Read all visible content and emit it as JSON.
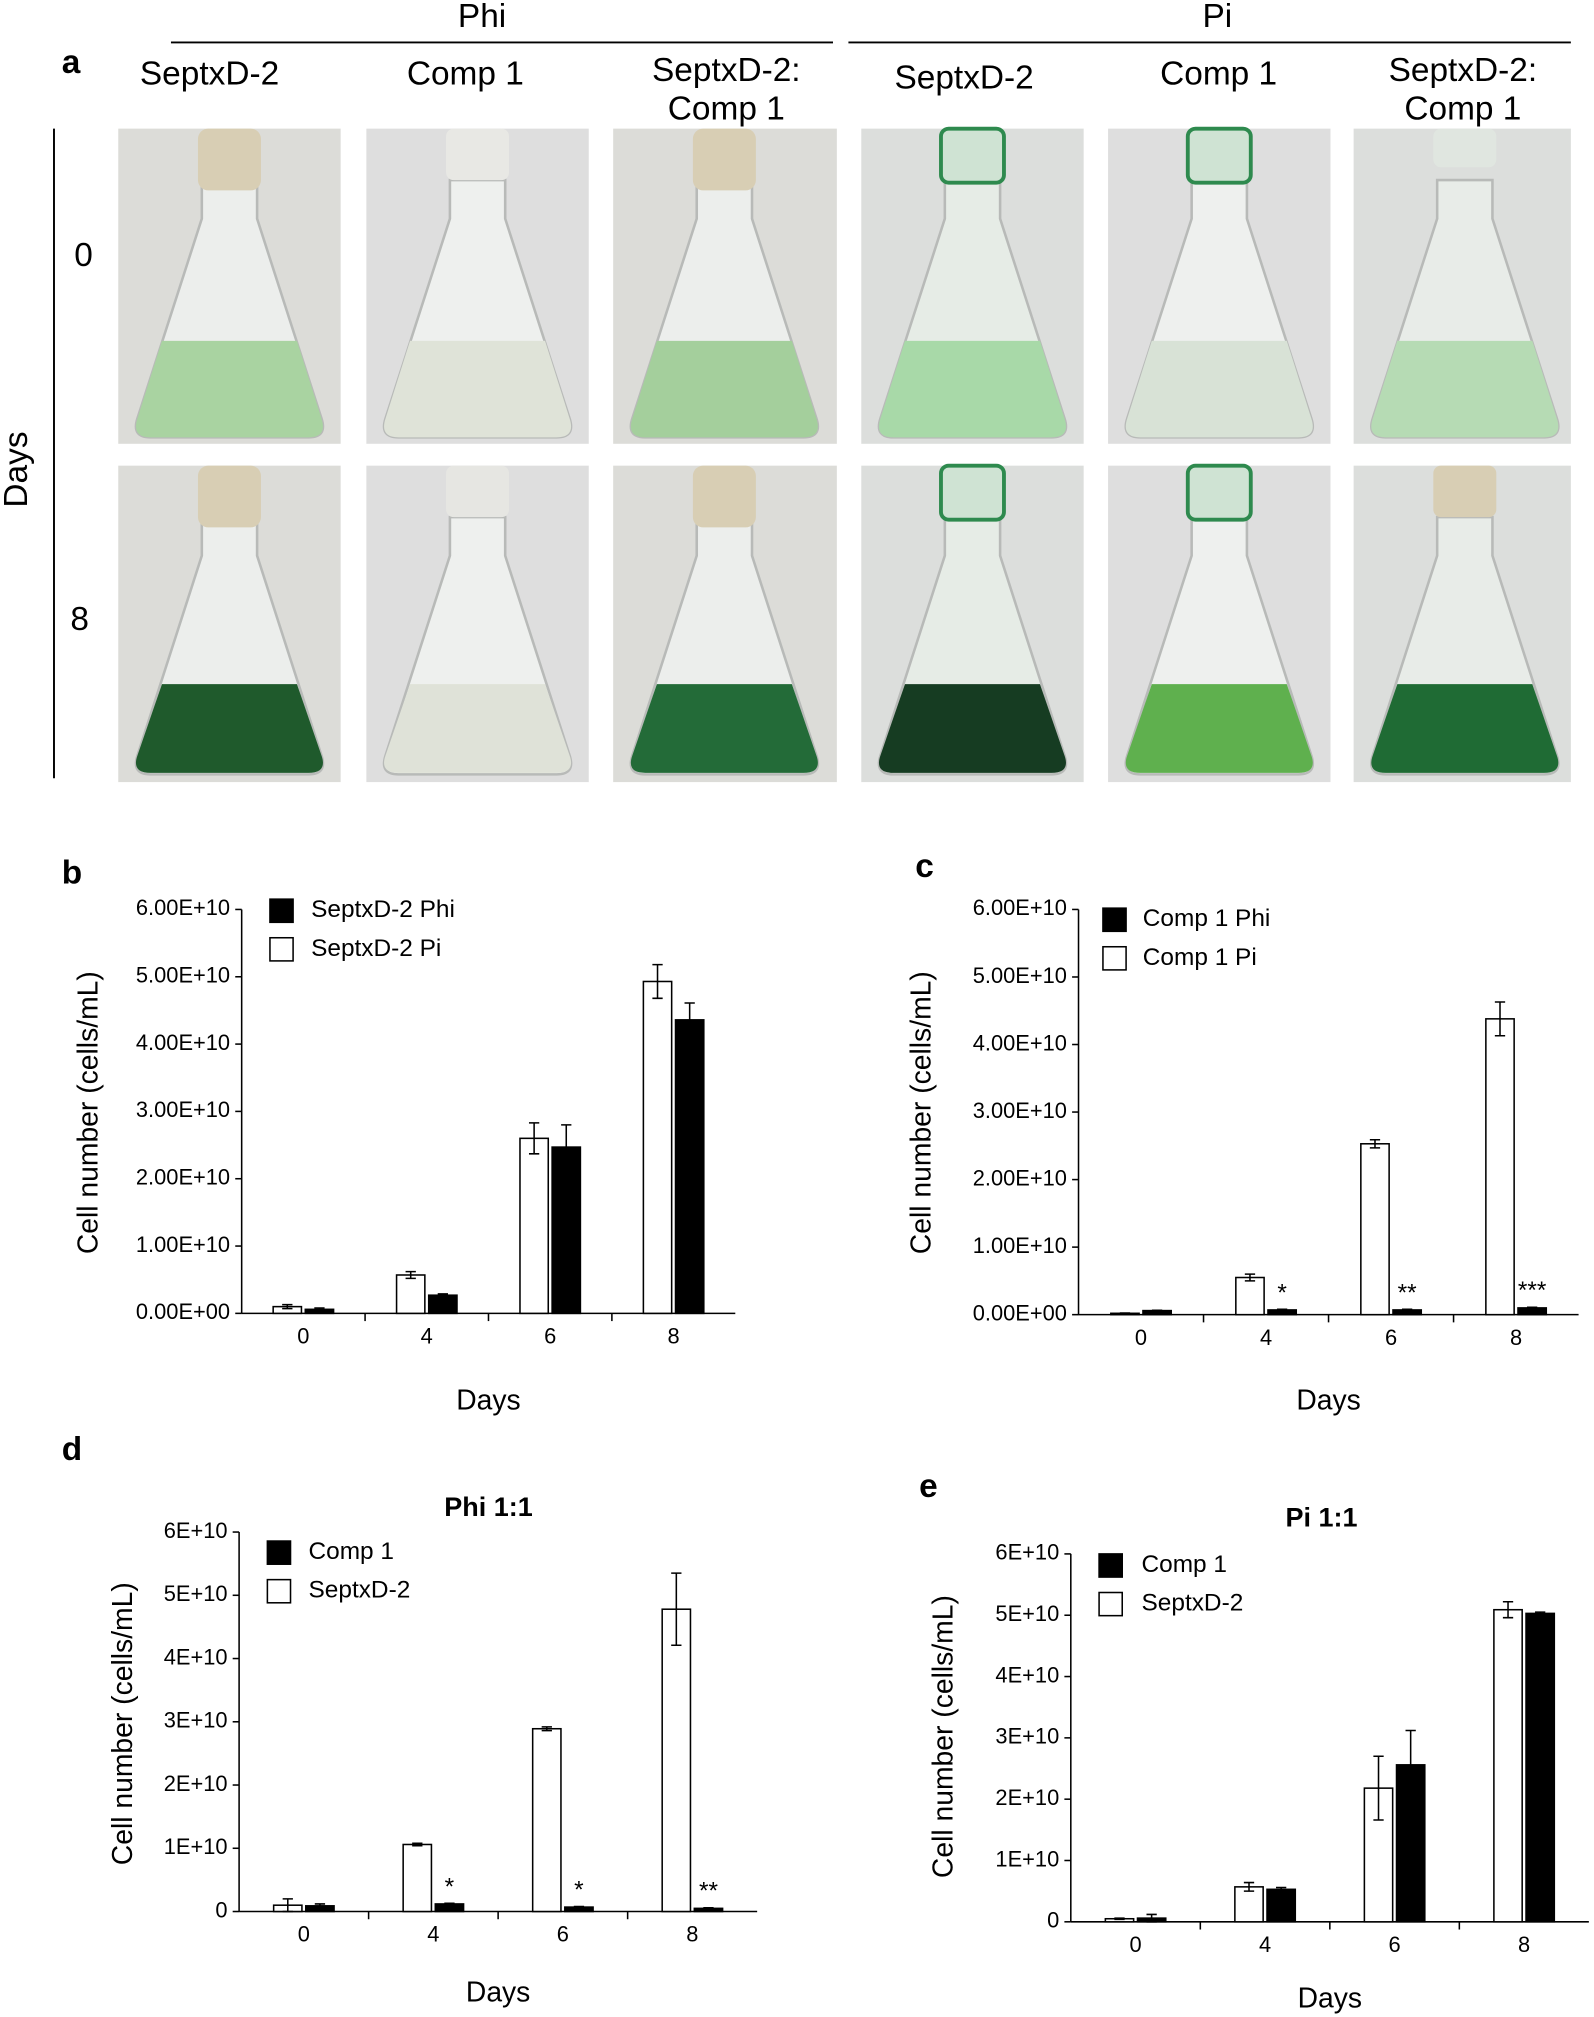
{
  "panel_a": {
    "label": "a",
    "groups": [
      "Phi",
      "Pi"
    ],
    "columns": [
      [
        "SeptxD-2"
      ],
      [
        "Comp 1"
      ],
      [
        "SeptxD-2:",
        "Comp 1"
      ],
      [
        "SeptxD-2"
      ],
      [
        "Comp 1"
      ],
      [
        "SeptxD-2:",
        "Comp 1"
      ]
    ],
    "row_axis": "Days",
    "rows": [
      "0",
      "8"
    ]
  },
  "chart_data": [
    {
      "type": "bar",
      "panel": "b",
      "x_label": "Days",
      "y_label": "Cell number (cells/mL)",
      "categories": [
        "0",
        "4",
        "6",
        "8"
      ],
      "series": [
        {
          "name": "SeptxD-2 Phi",
          "color": "#000000",
          "values": [
            600000000.0,
            2700000000.0,
            24700000000.0,
            43600000000.0
          ],
          "errors": [
            200000000.0,
            200000000.0,
            3300000000.0,
            2500000000.0
          ]
        },
        {
          "name": "SeptxD-2 Pi",
          "color": "#ffffff",
          "values": [
            1000000000.0,
            5700000000.0,
            26000000000.0,
            49300000000.0
          ],
          "errors": [
            300000000.0,
            500000000.0,
            2300000000.0,
            2500000000.0
          ]
        }
      ],
      "ylim": [
        0,
        60000000000.0
      ],
      "yticks": [
        {
          "value": 0,
          "label": "0.00E+00"
        },
        {
          "value": 10000000000.0,
          "label": "1.00E+10"
        },
        {
          "value": 20000000000.0,
          "label": "2.00E+10"
        },
        {
          "value": 30000000000.0,
          "label": "3.00E+10"
        },
        {
          "value": 40000000000.0,
          "label": "4.00E+10"
        },
        {
          "value": 50000000000.0,
          "label": "5.00E+10"
        },
        {
          "value": 60000000000.0,
          "label": "6.00E+10"
        }
      ]
    },
    {
      "type": "bar",
      "panel": "c",
      "x_label": "Days",
      "y_label": "Cell number (cells/mL)",
      "categories": [
        "0",
        "4",
        "6",
        "8"
      ],
      "series": [
        {
          "name": "Comp 1 Phi",
          "color": "#000000",
          "values": [
            600000000.0,
            700000000.0,
            700000000.0,
            1000000000.0
          ],
          "errors": [
            50000000.0,
            100000000.0,
            100000000.0,
            100000000.0
          ],
          "annotations": [
            null,
            "*",
            "**",
            "***"
          ]
        },
        {
          "name": "Comp 1 Pi",
          "color": "#ffffff",
          "values": [
            200000000.0,
            5500000000.0,
            25300000000.0,
            43800000000.0
          ],
          "errors": [
            50000000.0,
            500000000.0,
            600000000.0,
            2500000000.0
          ]
        }
      ],
      "ylim": [
        0,
        60000000000.0
      ],
      "yticks": [
        {
          "value": 0,
          "label": "0.00E+00"
        },
        {
          "value": 10000000000.0,
          "label": "1.00E+10"
        },
        {
          "value": 20000000000.0,
          "label": "2.00E+10"
        },
        {
          "value": 30000000000.0,
          "label": "3.00E+10"
        },
        {
          "value": 40000000000.0,
          "label": "4.00E+10"
        },
        {
          "value": 50000000000.0,
          "label": "5.00E+10"
        },
        {
          "value": 60000000000.0,
          "label": "6.00E+10"
        }
      ]
    },
    {
      "type": "bar",
      "panel": "d",
      "title": "Phi 1:1",
      "x_label": "Days",
      "y_label": "Cell number (cells/mL)",
      "categories": [
        "0",
        "4",
        "6",
        "8"
      ],
      "series": [
        {
          "name": "Comp 1",
          "color": "#000000",
          "values": [
            900000000.0,
            1200000000.0,
            700000000.0,
            500000000.0
          ],
          "errors": [
            300000000.0,
            100000000.0,
            100000000.0,
            100000000.0
          ],
          "annotations": [
            null,
            "*",
            "*",
            "**"
          ]
        },
        {
          "name": "SeptxD-2",
          "color": "#ffffff",
          "values": [
            1000000000.0,
            10600000000.0,
            28900000000.0,
            47800000000.0
          ],
          "errors": [
            1000000000.0,
            200000000.0,
            300000000.0,
            5700000000.0
          ]
        }
      ],
      "ylim": [
        0,
        60000000000.0
      ],
      "yticks": [
        0,
        {
          "value": 10000000000.0,
          "label": "1E+10"
        },
        {
          "value": 20000000000.0,
          "label": "2E+10"
        },
        {
          "value": 30000000000.0,
          "label": "3E+10"
        },
        {
          "value": 40000000000.0,
          "label": "4E+10"
        },
        {
          "value": 50000000000.0,
          "label": "5E+10"
        },
        {
          "value": 60000000000.0,
          "label": "6E+10"
        }
      ]
    },
    {
      "type": "bar",
      "panel": "e",
      "title": "Pi 1:1",
      "x_label": "Days",
      "y_label": "Cell number (cells/mL)",
      "categories": [
        "0",
        "4",
        "6",
        "8"
      ],
      "series": [
        {
          "name": "Comp 1",
          "color": "#000000",
          "values": [
            600000000.0,
            5300000000.0,
            25600000000.0,
            50300000000.0
          ],
          "errors": [
            600000000.0,
            300000000.0,
            5600000000.0,
            200000000.0
          ]
        },
        {
          "name": "SeptxD-2",
          "color": "#ffffff",
          "values": [
            500000000.0,
            5700000000.0,
            21800000000.0,
            50900000000.0
          ],
          "errors": [
            100000000.0,
            700000000.0,
            5200000000.0,
            1300000000.0
          ]
        }
      ],
      "ylim": [
        0,
        60000000000.0
      ],
      "yticks": [
        0,
        {
          "value": 10000000000.0,
          "label": "1E+10"
        },
        {
          "value": 20000000000.0,
          "label": "2E+10"
        },
        {
          "value": 30000000000.0,
          "label": "3E+10"
        },
        {
          "value": 40000000000.0,
          "label": "4E+10"
        },
        {
          "value": 50000000000.0,
          "label": "5E+10"
        },
        {
          "value": 60000000000.0,
          "label": "6E+10"
        }
      ]
    }
  ]
}
